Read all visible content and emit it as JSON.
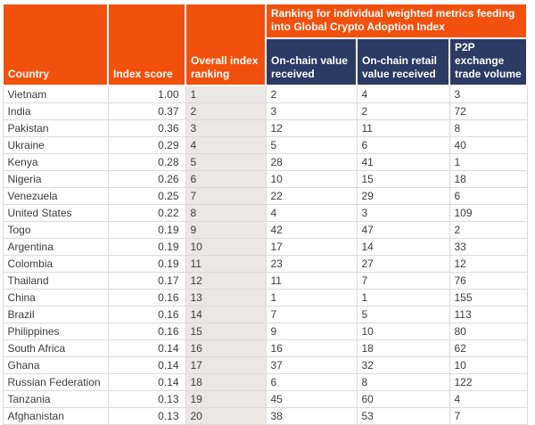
{
  "chart_data": {
    "type": "table",
    "header": {
      "country": "Country",
      "index_score": "Index score",
      "overall_ranking": "Overall index ranking",
      "metrics_group": "Ranking for individual weighted metrics feeding into Global Crypto Adoption Index",
      "on_chain_value": "On-chain value received",
      "on_chain_retail": "On-chain retail value received",
      "p2p_volume": "P2P exchange trade volume"
    },
    "column_keys": [
      "country",
      "index_score",
      "overall_ranking",
      "on_chain_value",
      "on_chain_retail",
      "p2p_volume"
    ],
    "rows": [
      {
        "country": "Vietnam",
        "index_score": "1.00",
        "overall_ranking": 1,
        "on_chain_value": 2,
        "on_chain_retail": 4,
        "p2p_volume": 3
      },
      {
        "country": "India",
        "index_score": "0.37",
        "overall_ranking": 2,
        "on_chain_value": 3,
        "on_chain_retail": 2,
        "p2p_volume": 72
      },
      {
        "country": "Pakistan",
        "index_score": "0.36",
        "overall_ranking": 3,
        "on_chain_value": 12,
        "on_chain_retail": 11,
        "p2p_volume": 8
      },
      {
        "country": "Ukraine",
        "index_score": "0.29",
        "overall_ranking": 4,
        "on_chain_value": 5,
        "on_chain_retail": 6,
        "p2p_volume": 40
      },
      {
        "country": "Kenya",
        "index_score": "0.28",
        "overall_ranking": 5,
        "on_chain_value": 28,
        "on_chain_retail": 41,
        "p2p_volume": 1
      },
      {
        "country": "Nigeria",
        "index_score": "0.26",
        "overall_ranking": 6,
        "on_chain_value": 10,
        "on_chain_retail": 15,
        "p2p_volume": 18
      },
      {
        "country": "Venezuela",
        "index_score": "0.25",
        "overall_ranking": 7,
        "on_chain_value": 22,
        "on_chain_retail": 29,
        "p2p_volume": 6
      },
      {
        "country": "United States",
        "index_score": "0.22",
        "overall_ranking": 8,
        "on_chain_value": 4,
        "on_chain_retail": 3,
        "p2p_volume": 109
      },
      {
        "country": "Togo",
        "index_score": "0.19",
        "overall_ranking": 9,
        "on_chain_value": 42,
        "on_chain_retail": 47,
        "p2p_volume": 2
      },
      {
        "country": "Argentina",
        "index_score": "0.19",
        "overall_ranking": 10,
        "on_chain_value": 17,
        "on_chain_retail": 14,
        "p2p_volume": 33
      },
      {
        "country": "Colombia",
        "index_score": "0.19",
        "overall_ranking": 11,
        "on_chain_value": 23,
        "on_chain_retail": 27,
        "p2p_volume": 12
      },
      {
        "country": "Thailand",
        "index_score": "0.17",
        "overall_ranking": 12,
        "on_chain_value": 11,
        "on_chain_retail": 7,
        "p2p_volume": 76
      },
      {
        "country": "China",
        "index_score": "0.16",
        "overall_ranking": 13,
        "on_chain_value": 1,
        "on_chain_retail": 1,
        "p2p_volume": 155
      },
      {
        "country": "Brazil",
        "index_score": "0.16",
        "overall_ranking": 14,
        "on_chain_value": 7,
        "on_chain_retail": 5,
        "p2p_volume": 113
      },
      {
        "country": "Philippines",
        "index_score": "0.16",
        "overall_ranking": 15,
        "on_chain_value": 9,
        "on_chain_retail": 10,
        "p2p_volume": 80
      },
      {
        "country": "South Africa",
        "index_score": "0.14",
        "overall_ranking": 16,
        "on_chain_value": 16,
        "on_chain_retail": 18,
        "p2p_volume": 62
      },
      {
        "country": "Ghana",
        "index_score": "0.14",
        "overall_ranking": 17,
        "on_chain_value": 37,
        "on_chain_retail": 32,
        "p2p_volume": 10
      },
      {
        "country": "Russian Federation",
        "index_score": "0.14",
        "overall_ranking": 18,
        "on_chain_value": 6,
        "on_chain_retail": 8,
        "p2p_volume": 122
      },
      {
        "country": "Tanzania",
        "index_score": "0.13",
        "overall_ranking": 19,
        "on_chain_value": 45,
        "on_chain_retail": 60,
        "p2p_volume": 4
      },
      {
        "country": "Afghanistan",
        "index_score": "0.13",
        "overall_ranking": 20,
        "on_chain_value": 38,
        "on_chain_retail": 53,
        "p2p_volume": 7
      }
    ]
  },
  "colors": {
    "header_orange": "#F2510D",
    "header_navy": "#2C3A64",
    "ranking_column_bg": "#EAE8E5",
    "grid_line": "#DBDBDB",
    "body_text": "#3C3C3C"
  }
}
